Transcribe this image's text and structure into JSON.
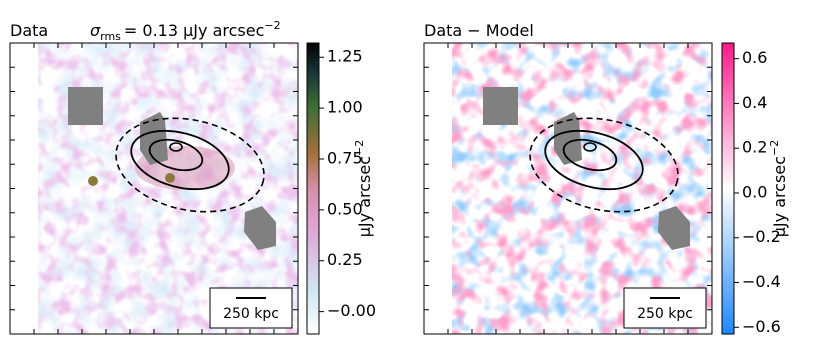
{
  "chart_data": [
    {
      "type": "image",
      "title": "Data",
      "annotation": {
        "symbol": "σ",
        "subscript": "rms",
        "text": "= 0.13 μJy arcsec",
        "superscript": "−2"
      },
      "colorbar_label": {
        "text": "μJy arcsec",
        "superscript": "−2"
      },
      "clim": [
        -0.11,
        1.32
      ],
      "cticks": [
        {
          "value": 0,
          "label": "−0.00"
        },
        {
          "value": 0.25,
          "label": "0.25"
        },
        {
          "value": 0.5,
          "label": "0.50"
        },
        {
          "value": 0.75,
          "label": "0.75"
        },
        {
          "value": 1,
          "label": "1.00"
        },
        {
          "value": 1.25,
          "label": "1.25"
        }
      ],
      "scalebar": "250 kpc"
    },
    {
      "type": "image",
      "title": "Data − Model",
      "colorbar_label": {
        "text": "μJy arcsec",
        "superscript": "−2"
      },
      "clim": [
        -0.63,
        0.67
      ],
      "cticks": [
        {
          "value": -0.6,
          "label": "−0.6"
        },
        {
          "value": -0.4,
          "label": "−0.4"
        },
        {
          "value": -0.2,
          "label": "−0.2"
        },
        {
          "value": 0,
          "label": "0.0"
        },
        0.2,
        0.4,
        0.6
      ],
      "scalebar": "250 kpc"
    }
  ]
}
